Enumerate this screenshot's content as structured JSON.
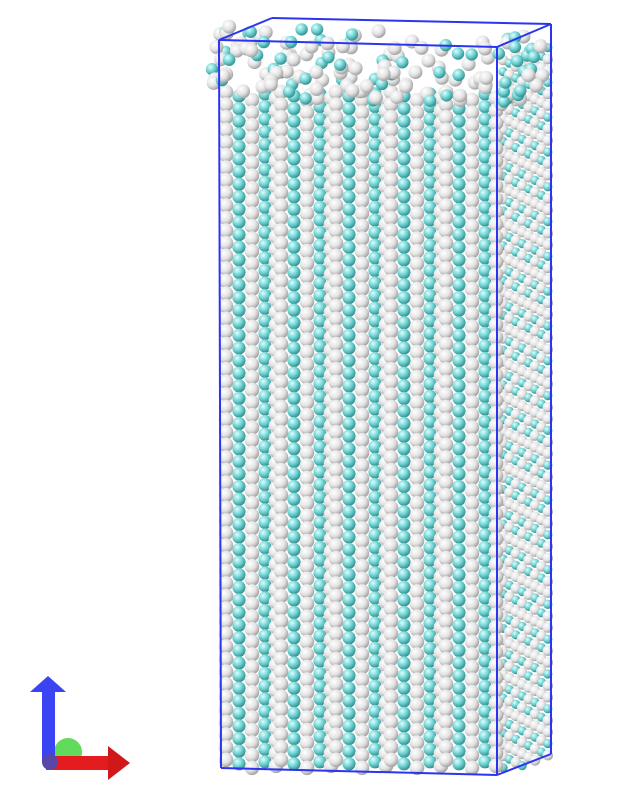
{
  "scene": {
    "representation": "van-der-waals-spheres",
    "atom_colors": {
      "carbon": "#5ec9c9",
      "hydrogen": "#ececec"
    },
    "box_color": "#2b35f0",
    "background": "#ffffff",
    "chain_columns_front": 5,
    "chain_columns_side": 2
  },
  "axes": {
    "x_color": "#e0191c",
    "y_color": "#2f3bf5",
    "z_color": "#3fd13a"
  }
}
